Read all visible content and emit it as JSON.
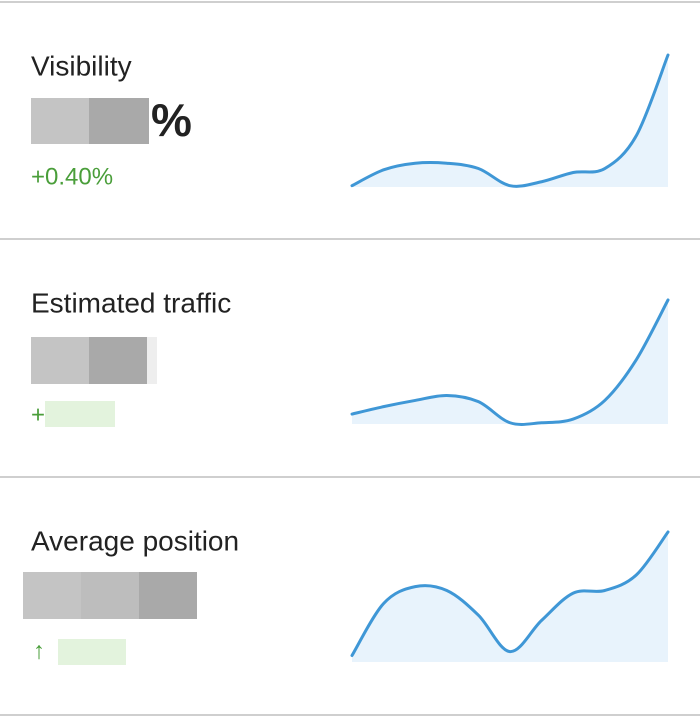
{
  "cards": [
    {
      "title": "Visibility",
      "unit": "%",
      "change": "+0.40%",
      "sparkline": {
        "values": [
          1,
          13,
          18,
          18,
          14,
          1,
          4,
          11,
          14,
          39,
          100
        ],
        "ylim": [
          0,
          100
        ]
      }
    },
    {
      "title": "Estimated traffic",
      "change": "+",
      "sparkline": {
        "values": [
          8,
          14,
          19,
          23,
          18,
          1,
          1,
          4,
          19,
          52,
          100
        ],
        "ylim": [
          0,
          100
        ]
      }
    },
    {
      "title": "Average position",
      "change": "↑",
      "sparkline": {
        "values": [
          5,
          45,
          58,
          55,
          36,
          8,
          32,
          53,
          55,
          67,
          100
        ],
        "ylim": [
          0,
          100
        ]
      }
    }
  ]
}
